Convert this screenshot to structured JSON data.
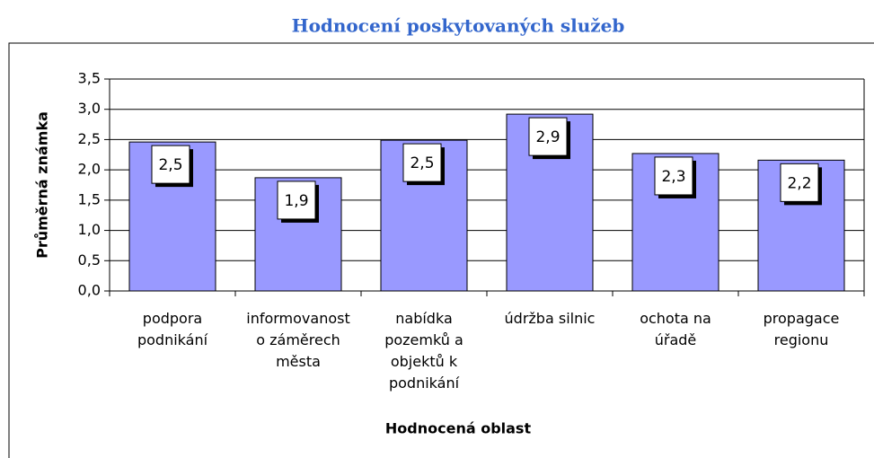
{
  "chart_data": {
    "type": "bar",
    "title": "Hodnocení poskytovaných služeb",
    "x_label": "Hodnocená oblast",
    "y_label": "Průměrná známka",
    "categories": [
      "podpora podnikání",
      "informovanost o záměrech města",
      "nabídka pozemků a objektů k podnikání",
      "údržba silnic",
      "ochota na úřadě",
      "propagace regionu"
    ],
    "values": [
      2.46,
      1.87,
      2.49,
      2.92,
      2.27,
      2.16
    ],
    "value_labels": [
      "2,5",
      "1,9",
      "2,5",
      "2,9",
      "2,3",
      "2,2"
    ],
    "color": "#9999ff",
    "ylim": [
      0,
      3.5
    ],
    "yticks": [
      {
        "value": 0,
        "label": "0,0"
      },
      {
        "value": 0.5,
        "label": "0,5"
      },
      {
        "value": 1,
        "label": "1,0"
      },
      {
        "value": 1.5,
        "label": "1,5"
      },
      {
        "value": 2,
        "label": "2,0"
      },
      {
        "value": 2.5,
        "label": "2,5"
      },
      {
        "value": 3,
        "label": "3,0"
      },
      {
        "value": 3.5,
        "label": "3,5"
      }
    ],
    "grid": true
  }
}
